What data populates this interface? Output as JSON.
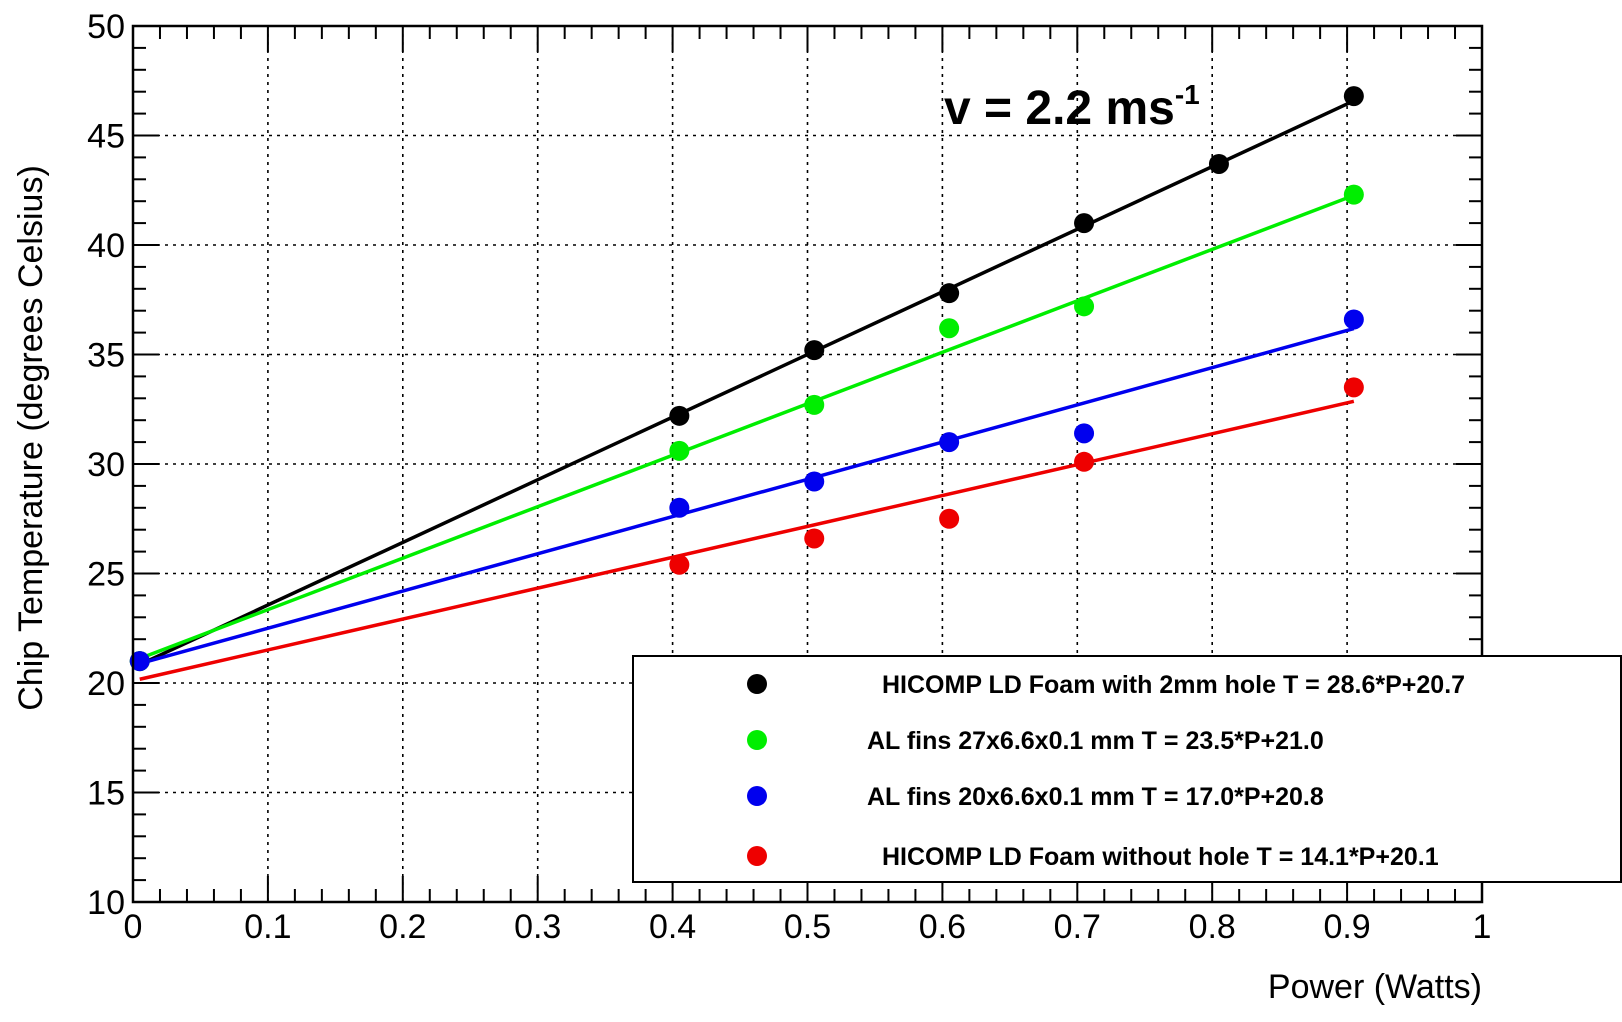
{
  "chart_data": {
    "type": "scatter",
    "title": "",
    "xlabel": "Power (Watts)",
    "ylabel": "Chip Temperature (degrees Celsius)",
    "xlim": [
      0,
      1
    ],
    "ylim": [
      10,
      50
    ],
    "x_ticks": [
      "0",
      "0.1",
      "0.2",
      "0.3",
      "0.4",
      "0.5",
      "0.6",
      "0.7",
      "0.8",
      "0.9",
      "1"
    ],
    "y_ticks": [
      "10",
      "15",
      "20",
      "25",
      "30",
      "35",
      "40",
      "45",
      "50"
    ],
    "grid": true,
    "legend_position": "bottom-right",
    "annotation": {
      "base": "v = 2.2 ms",
      "sup": "-1"
    },
    "series": [
      {
        "name": "HICOMP LD Foam with 2mm hole T = 28.6*P+20.7",
        "color": "#000000",
        "x": [
          0.005,
          0.405,
          0.505,
          0.605,
          0.705,
          0.805,
          0.905
        ],
        "y": [
          21.0,
          32.2,
          35.2,
          37.8,
          41.0,
          43.7,
          46.8
        ],
        "fit": {
          "slope": 28.6,
          "intercept": 20.7,
          "x_range": [
            0.005,
            0.905
          ]
        }
      },
      {
        "name": "AL fins 27x6.6x0.1 mm T = 23.5*P+21.0",
        "color": "#00ee00",
        "x": [
          0.005,
          0.405,
          0.505,
          0.605,
          0.705,
          0.905
        ],
        "y": [
          21.0,
          30.6,
          32.7,
          36.2,
          37.2,
          42.3
        ],
        "fit": {
          "slope": 23.5,
          "intercept": 21.0,
          "x_range": [
            0.005,
            0.905
          ]
        }
      },
      {
        "name": "AL fins 20x6.6x0.1 mm T = 17.0*P+20.8",
        "color": "#0000ee",
        "x": [
          0.005,
          0.405,
          0.505,
          0.605,
          0.705,
          0.905
        ],
        "y": [
          21.0,
          28.0,
          29.2,
          31.0,
          31.4,
          36.6
        ],
        "fit": {
          "slope": 17.0,
          "intercept": 20.8,
          "x_range": [
            0.005,
            0.905
          ]
        }
      },
      {
        "name": "HICOMP LD Foam without hole T = 14.1*P+20.1",
        "color": "#ee0000",
        "x": [
          0.405,
          0.505,
          0.605,
          0.705,
          0.905
        ],
        "y": [
          25.4,
          26.6,
          27.5,
          30.1,
          33.5
        ],
        "fit": {
          "slope": 14.1,
          "intercept": 20.1,
          "x_range": [
            0.005,
            0.905
          ]
        }
      }
    ]
  }
}
